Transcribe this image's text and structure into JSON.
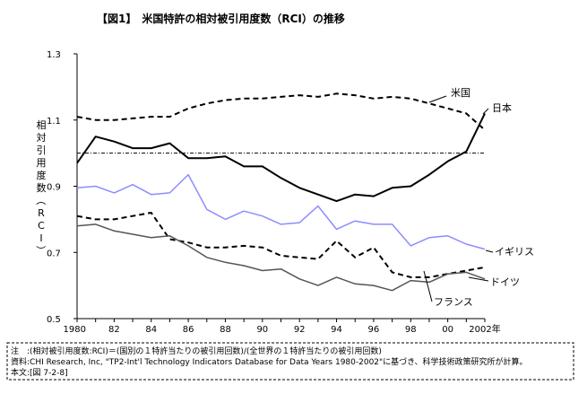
{
  "chart_data": {
    "type": "line",
    "title": "【図1】　米国特許の相対被引用度数（RCI）の推移",
    "ylabel": "相対引用度数（RCI）",
    "x_unit": "年",
    "x": [
      1980,
      1981,
      1982,
      1983,
      1984,
      1985,
      1986,
      1987,
      1988,
      1989,
      1990,
      1991,
      1992,
      1993,
      1994,
      1995,
      1996,
      1997,
      1998,
      1999,
      2000,
      2001,
      2002
    ],
    "xticks": [
      1980,
      1982,
      1984,
      1986,
      1988,
      1990,
      1992,
      1994,
      1996,
      1998,
      2000,
      2002
    ],
    "xtick_labels": [
      "1980",
      "82",
      "84",
      "86",
      "88",
      "90",
      "92",
      "94",
      "96",
      "98",
      "00",
      "2002年"
    ],
    "ylim": [
      0.5,
      1.3
    ],
    "yticks": [
      0.5,
      0.7,
      0.9,
      1.1,
      1.3
    ],
    "ytick_labels": [
      "0.5",
      "0.7",
      "0.9",
      "1.1",
      "1.3"
    ],
    "reference_line": 1.0,
    "grid": false,
    "series": [
      {
        "name": "米国",
        "color": "#000000",
        "style": "dashed",
        "width": 2,
        "values": [
          1.11,
          1.1,
          1.1,
          1.105,
          1.11,
          1.11,
          1.135,
          1.15,
          1.16,
          1.165,
          1.165,
          1.17,
          1.175,
          1.17,
          1.18,
          1.175,
          1.165,
          1.17,
          1.165,
          1.15,
          1.135,
          1.12,
          1.07
        ]
      },
      {
        "name": "日本",
        "color": "#000000",
        "style": "solid",
        "width": 2,
        "values": [
          0.97,
          1.05,
          1.035,
          1.015,
          1.015,
          1.03,
          0.985,
          0.985,
          0.99,
          0.96,
          0.96,
          0.925,
          0.895,
          0.875,
          0.855,
          0.875,
          0.87,
          0.895,
          0.9,
          0.935,
          0.975,
          1.005,
          1.12
        ]
      },
      {
        "name": "イギリス",
        "color": "#8c8cff",
        "style": "solid",
        "width": 1.5,
        "values": [
          0.895,
          0.9,
          0.88,
          0.905,
          0.875,
          0.88,
          0.935,
          0.83,
          0.8,
          0.825,
          0.81,
          0.785,
          0.79,
          0.84,
          0.77,
          0.795,
          0.785,
          0.785,
          0.72,
          0.745,
          0.75,
          0.725,
          0.71
        ]
      },
      {
        "name": "フランス",
        "color": "#000000",
        "style": "dashed",
        "width": 2,
        "values": [
          0.81,
          0.8,
          0.8,
          0.81,
          0.82,
          0.74,
          0.73,
          0.715,
          0.715,
          0.72,
          0.715,
          0.69,
          0.685,
          0.68,
          0.735,
          0.685,
          0.715,
          0.64,
          0.625,
          0.625,
          0.635,
          0.645,
          0.655
        ]
      },
      {
        "name": "ドイツ",
        "color": "#555555",
        "style": "solid",
        "width": 1.5,
        "values": [
          0.78,
          0.785,
          0.765,
          0.755,
          0.745,
          0.75,
          0.72,
          0.685,
          0.67,
          0.66,
          0.645,
          0.65,
          0.62,
          0.6,
          0.625,
          0.605,
          0.6,
          0.585,
          0.615,
          0.61,
          0.635,
          0.64,
          0.62
        ]
      }
    ]
  },
  "notes": [
    "注　:(相対被引用度数:RCI)＝(国別の１特許当たりの被引用回数)/(全世界の１特許当たりの被引用回数)",
    "資料:CHI Research, Inc, \"TP2-Int'l Technology Indicators Database for Data Years 1980-2002\"に基づき、科学技術政策研究所が計算。",
    "本文:[図 7-2-8]"
  ]
}
